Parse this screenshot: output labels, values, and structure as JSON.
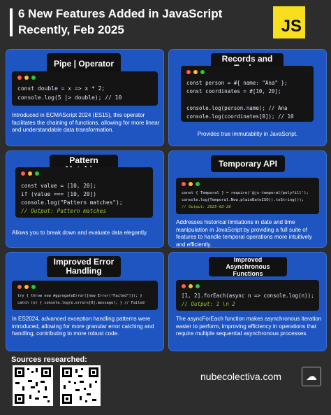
{
  "header": {
    "title": "6 New Features Added in JavaScript Recently, Feb 2025",
    "logo": "JS"
  },
  "cards": [
    {
      "title": "Pipe | Operator",
      "code": [
        "const double = x => x * 2;",
        "console.log(5 |> double); // 10"
      ],
      "description": "Introduced in ECMAScript 2024 (ES15), this operator facilitates the chaining of functions, allowing for more linear and understandable data transformation."
    },
    {
      "title": "Records and Tuples",
      "code": [
        "const person = #{ name: \"Ana\" };",
        "const coordinates = #[10, 20];",
        "",
        "console.log(person.name); // Ana",
        "console.log(coordinates[0]); // 10"
      ],
      "description": "Provides true immutability in JavaScript."
    },
    {
      "title": "Pattern Matching",
      "code": [
        "const value = [10, 20];",
        "if (value === [10, 20])",
        "console.log(\"Pattern matches\");",
        "// Output: Pattern matches"
      ],
      "description": "Allows you to break down and evaluate data elegantly."
    },
    {
      "title": "Temporary API",
      "code": [
        "const { Temporal } = require('@js-temporal/polyfill');",
        "console.log(Temporal.Now.plainDateISO().toString());",
        "// Output: 2025-02-26"
      ],
      "description": "Addresses historical limitations in date and time manipulation in JavaScript by providing a full suite of features to handle temporal operations more intuitively and efficiently."
    },
    {
      "title": "Improved Error Handling",
      "code": [
        "try { throw new AggregateError([new Error(\"Failed\")]); }",
        "catch (e) { console.log(e.errors[0].message); } // Failed"
      ],
      "description": "In ES2024, advanced exception handling patterns were introduced, allowing for more granular error catching and handling, contributing to more robust code."
    },
    {
      "title": "Improved Asynchronous Functions",
      "code": [
        "[1, 2].forEach(async n => console.log(n));",
        "// Output: 1 \\n 2"
      ],
      "description": "The asyncForEach function makes asynchronous iteration easier to perform, improving efficiency in operations that require multiple sequential asynchronous processes."
    }
  ],
  "footer": {
    "sources_label": "Sources researched:",
    "site": "nubecolectiva.com"
  },
  "colors": {
    "background": "#2d2d2d",
    "card": "#1f55c1",
    "js_yellow": "#f7df1e"
  }
}
